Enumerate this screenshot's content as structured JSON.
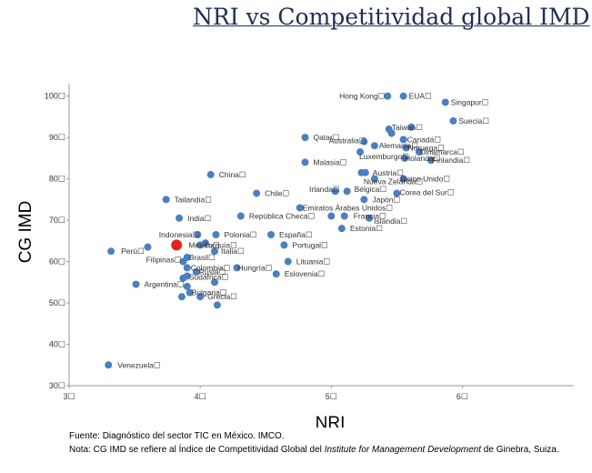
{
  "chart_data": {
    "type": "scatter",
    "title": "NRI vs Competitividad global IMD",
    "xlabel": "NRI",
    "ylabel": "CG IMD",
    "xlim": [
      3,
      6.85
    ],
    "ylim": [
      30,
      103
    ],
    "xticks": [
      3,
      4,
      5,
      6
    ],
    "xtick_labels": [
      "3☐",
      "4☐",
      "5☐",
      "6☐"
    ],
    "yticks": [
      30,
      40,
      50,
      60,
      70,
      80,
      90,
      100
    ],
    "ytick_labels": [
      "30☐",
      "40☐",
      "50☐",
      "60☐",
      "70☐",
      "80☐",
      "90☐",
      "100☐"
    ],
    "colors": {
      "point": "#4a7fc1",
      "highlight": "#e8221e",
      "axis": "#9a9a9a"
    },
    "points": [
      {
        "label": "Hong Kong☐",
        "x": 5.43,
        "y": 100,
        "anchor": "end",
        "dx": -3,
        "dy": 3
      },
      {
        "label": "EUA☐",
        "x": 5.55,
        "y": 100,
        "anchor": "start",
        "dx": 6,
        "dy": 3
      },
      {
        "label": "Singapur☐",
        "x": 5.87,
        "y": 98.5,
        "anchor": "start",
        "dx": 6,
        "dy": 3
      },
      {
        "label": "Suecia☐",
        "x": 5.93,
        "y": 94,
        "anchor": "start",
        "dx": 6,
        "dy": 3
      },
      {
        "label": "Taiwan☐",
        "x": 5.44,
        "y": 92,
        "anchor": "start",
        "dx": 3,
        "dy": 1
      },
      {
        "label": "",
        "x": 5.61,
        "y": 92.5,
        "anchor": "start",
        "dx": 0,
        "dy": 0
      },
      {
        "label": "",
        "x": 5.46,
        "y": 91,
        "anchor": "start",
        "dx": 0,
        "dy": 0
      },
      {
        "label": "Canadá☐",
        "x": 5.55,
        "y": 89.5,
        "anchor": "start",
        "dx": 4,
        "dy": 3
      },
      {
        "label": "Qatar☐",
        "x": 4.8,
        "y": 90,
        "anchor": "start",
        "dx": 9,
        "dy": 3
      },
      {
        "label": "Australia☐",
        "x": 5.25,
        "y": 89,
        "anchor": "end",
        "dx": 2,
        "dy": 2
      },
      {
        "label": "Alemania☐",
        "x": 5.33,
        "y": 88,
        "anchor": "start",
        "dx": 5,
        "dy": 3
      },
      {
        "label": "Noruega☐",
        "x": 5.57,
        "y": 87.5,
        "anchor": "start",
        "dx": 2,
        "dy": 3
      },
      {
        "label": "Luxemburgo☐",
        "x": 5.22,
        "y": 86.5,
        "anchor": "start",
        "dx": -1,
        "dy": 8
      },
      {
        "label": "Dinamarca☐",
        "x": 5.67,
        "y": 86.5,
        "anchor": "start",
        "dx": 1,
        "dy": 3
      },
      {
        "label": "Holanda☐",
        "x": 5.56,
        "y": 85,
        "anchor": "start",
        "dx": 0,
        "dy": 3
      },
      {
        "label": "Finlandia☐",
        "x": 5.76,
        "y": 84.5,
        "anchor": "start",
        "dx": 1,
        "dy": 3
      },
      {
        "label": "Malasia☐",
        "x": 4.8,
        "y": 84,
        "anchor": "start",
        "dx": 9,
        "dy": 3
      },
      {
        "label": "China☐",
        "x": 4.08,
        "y": 81,
        "anchor": "start",
        "dx": 9,
        "dy": 3
      },
      {
        "label": "Austria☐",
        "x": 5.26,
        "y": 81.5,
        "anchor": "start",
        "dx": 8,
        "dy": 3
      },
      {
        "label": "",
        "x": 5.23,
        "y": 81.5,
        "anchor": "start",
        "dx": 0,
        "dy": 0
      },
      {
        "label": "Nueva Zelanda☐",
        "x": 5.33,
        "y": 80,
        "anchor": "start",
        "dx": -12,
        "dy": 6
      },
      {
        "label": "Reino Unido☐",
        "x": 5.55,
        "y": 80,
        "anchor": "start",
        "dx": -3,
        "dy": 3
      },
      {
        "label": "Chile☐",
        "x": 4.43,
        "y": 76.5,
        "anchor": "start",
        "dx": 9,
        "dy": 3
      },
      {
        "label": "Irlanda☐",
        "x": 5.03,
        "y": 77,
        "anchor": "end",
        "dx": 5,
        "dy": 1
      },
      {
        "label": "Bélgica☐",
        "x": 5.12,
        "y": 77,
        "anchor": "start",
        "dx": 8,
        "dy": 1
      },
      {
        "label": "Corea del Sur☐",
        "x": 5.5,
        "y": 76.5,
        "anchor": "start",
        "dx": 3,
        "dy": 2
      },
      {
        "label": "Tailandia☐",
        "x": 3.74,
        "y": 75,
        "anchor": "start",
        "dx": 9,
        "dy": 3
      },
      {
        "label": "Japón☐",
        "x": 5.25,
        "y": 75,
        "anchor": "start",
        "dx": 9,
        "dy": 3
      },
      {
        "label": "Emiratos Árabes Unidos☐",
        "x": 4.76,
        "y": 73,
        "anchor": "start",
        "dx": 3,
        "dy": 3
      },
      {
        "label": "India☐",
        "x": 3.84,
        "y": 70.5,
        "anchor": "start",
        "dx": 9,
        "dy": 3
      },
      {
        "label": "República Checa☐",
        "x": 4.31,
        "y": 71,
        "anchor": "start",
        "dx": 9,
        "dy": 3
      },
      {
        "label": "",
        "x": 5.0,
        "y": 71,
        "anchor": "start",
        "dx": 0,
        "dy": 0
      },
      {
        "label": "Francia☐",
        "x": 5.1,
        "y": 71,
        "anchor": "start",
        "dx": 10,
        "dy": 3
      },
      {
        "label": "Islandia☐",
        "x": 5.29,
        "y": 70.5,
        "anchor": "start",
        "dx": 5,
        "dy": 6
      },
      {
        "label": "Estonia☐",
        "x": 5.08,
        "y": 68,
        "anchor": "start",
        "dx": 9,
        "dy": 3
      },
      {
        "label": "Indonesia☐",
        "x": 3.98,
        "y": 66.5,
        "anchor": "end",
        "dx": 2,
        "dy": 3
      },
      {
        "label": "Polonia☐",
        "x": 4.12,
        "y": 66.5,
        "anchor": "start",
        "dx": 9,
        "dy": 3
      },
      {
        "label": "España☐",
        "x": 4.54,
        "y": 66.5,
        "anchor": "start",
        "dx": 9,
        "dy": 3
      },
      {
        "label": "",
        "x": 4.04,
        "y": 64.5,
        "anchor": "start",
        "dx": 0,
        "dy": 0
      },
      {
        "label": "",
        "x": 3.6,
        "y": 63.5,
        "anchor": "start",
        "dx": 0,
        "dy": 0
      },
      {
        "label": "Perú☐",
        "x": 3.32,
        "y": 62.5,
        "anchor": "start",
        "dx": 11,
        "dy": 3
      },
      {
        "label": "México☐",
        "x": 3.82,
        "y": 64.0,
        "anchor": "start",
        "dx": 13,
        "dy": 3,
        "highlight": true
      },
      {
        "label": "Turquía☐",
        "x": 4.0,
        "y": 64,
        "anchor": "start",
        "dx": 4,
        "dy": 3
      },
      {
        "label": "Italia☐",
        "x": 4.11,
        "y": 62.5,
        "anchor": "start",
        "dx": 7,
        "dy": 3
      },
      {
        "label": "Portugal☐",
        "x": 4.64,
        "y": 64,
        "anchor": "start",
        "dx": 9,
        "dy": 3
      },
      {
        "label": "Brasil☐",
        "x": 3.9,
        "y": 61,
        "anchor": "start",
        "dx": 2,
        "dy": 3
      },
      {
        "label": "Filipinas☐",
        "x": 3.87,
        "y": 60,
        "anchor": "end",
        "dx": -2,
        "dy": 1
      },
      {
        "label": "Colombia☐",
        "x": 3.9,
        "y": 58.5,
        "anchor": "start",
        "dx": 4,
        "dy": 3
      },
      {
        "label": "Lituania☐",
        "x": 4.67,
        "y": 60,
        "anchor": "start",
        "dx": 9,
        "dy": 3
      },
      {
        "label": "Rusia☐",
        "x": 3.97,
        "y": 57.5,
        "anchor": "start",
        "dx": 3,
        "dy": 3
      },
      {
        "label": "Hungría☐",
        "x": 4.28,
        "y": 58.5,
        "anchor": "start",
        "dx": 1,
        "dy": 3
      },
      {
        "label": "Sudáfrica☐",
        "x": 3.9,
        "y": 56.5,
        "anchor": "start",
        "dx": 2,
        "dy": 4
      },
      {
        "label": "",
        "x": 3.87,
        "y": 56.0,
        "anchor": "start",
        "dx": 0,
        "dy": 0
      },
      {
        "label": "Eslovenia☐",
        "x": 4.58,
        "y": 57,
        "anchor": "start",
        "dx": 9,
        "dy": 3
      },
      {
        "label": "",
        "x": 4.11,
        "y": 55,
        "anchor": "start",
        "dx": 0,
        "dy": 0
      },
      {
        "label": "Argentina☐",
        "x": 3.51,
        "y": 54.5,
        "anchor": "start",
        "dx": 9,
        "dy": 3
      },
      {
        "label": "",
        "x": 3.9,
        "y": 54,
        "anchor": "start",
        "dx": 0,
        "dy": 0
      },
      {
        "label": "Bulgaria☐",
        "x": 3.92,
        "y": 52.5,
        "anchor": "start",
        "dx": 2,
        "dy": 3
      },
      {
        "label": "Grecia☐",
        "x": 4.0,
        "y": 51.5,
        "anchor": "start",
        "dx": 8,
        "dy": 3
      },
      {
        "label": "",
        "x": 3.86,
        "y": 51.5,
        "anchor": "start",
        "dx": 0,
        "dy": 0
      },
      {
        "label": "",
        "x": 4.13,
        "y": 49.5,
        "anchor": "start",
        "dx": 0,
        "dy": 0
      },
      {
        "label": "Venezuela☐",
        "x": 3.3,
        "y": 35,
        "anchor": "start",
        "dx": 10,
        "dy": 3
      }
    ]
  },
  "notes": {
    "fuente": "Fuente: Diagnóstico del sector TIC en México. IMCO.",
    "nota_pre": "Nota: CG IMD se refiere al Índice de Competitividad Global del ",
    "nota_inst": "Institute for Management Development",
    "nota_post": " de Ginebra, Suiza."
  }
}
